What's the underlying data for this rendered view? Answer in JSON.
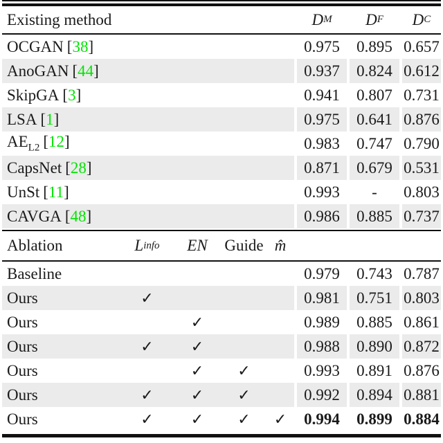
{
  "misc": {
    "bracket_open": "[",
    "bracket_close": "]",
    "dash": "-",
    "check_glyph": "✓"
  },
  "colors": {
    "citation_green": "#00e400",
    "stripe_gray": "#ebebeb",
    "rule_black": "#111111",
    "text": "#1a1a1a"
  },
  "existing": {
    "header": {
      "label": "Existing method",
      "cols": [
        {
          "base": "D",
          "sub": "M"
        },
        {
          "base": "D",
          "sub": "F"
        },
        {
          "base": "D",
          "sub": "C"
        }
      ]
    },
    "rows": [
      {
        "name": "OCGAN",
        "cite": "38",
        "dm": "0.975",
        "df": "0.895",
        "dc": "0.657"
      },
      {
        "name": "AnoGAN",
        "cite": "44",
        "dm": "0.937",
        "df": "0.824",
        "dc": "0.612"
      },
      {
        "name": "SkipGA",
        "cite": "3",
        "dm": "0.941",
        "df": "0.807",
        "dc": "0.731"
      },
      {
        "name": "LSA",
        "cite": "1",
        "dm": "0.975",
        "df": "0.641",
        "dc": "0.876"
      },
      {
        "name": "AE",
        "name_sub": "L2",
        "cite": "12",
        "dm": "0.983",
        "df": "0.747",
        "dc": "0.790"
      },
      {
        "name": "CapsNet",
        "cite": "28",
        "dm": "0.871",
        "df": "0.679",
        "dc": "0.531"
      },
      {
        "name": "UnSt",
        "cite": "11",
        "dm": "0.993",
        "df": "-",
        "dc": "0.803"
      },
      {
        "name": "CAVGA",
        "cite": "48",
        "dm": "0.986",
        "df": "0.885",
        "dc": "0.737"
      }
    ]
  },
  "ablation": {
    "header": {
      "label": "Ablation",
      "cols": [
        {
          "base": "L",
          "sub": "info"
        },
        {
          "base": "EN"
        },
        {
          "base": "Guide"
        },
        {
          "base": "m̂"
        }
      ]
    },
    "rows": [
      {
        "name": "Baseline",
        "checks": [
          "",
          "",
          "",
          ""
        ],
        "dm": "0.979",
        "df": "0.743",
        "dc": "0.787"
      },
      {
        "name": "Ours",
        "checks": [
          "✓",
          "",
          "",
          ""
        ],
        "dm": "0.981",
        "df": "0.751",
        "dc": "0.803"
      },
      {
        "name": "Ours",
        "checks": [
          "",
          "✓",
          "",
          ""
        ],
        "dm": "0.989",
        "df": "0.885",
        "dc": "0.861"
      },
      {
        "name": "Ours",
        "checks": [
          "✓",
          "✓",
          "",
          ""
        ],
        "dm": "0.988",
        "df": "0.890",
        "dc": "0.872"
      },
      {
        "name": "Ours",
        "checks": [
          "",
          "✓",
          "✓",
          ""
        ],
        "dm": "0.993",
        "df": "0.891",
        "dc": "0.876"
      },
      {
        "name": "Ours",
        "checks": [
          "✓",
          "✓",
          "✓",
          ""
        ],
        "dm": "0.992",
        "df": "0.894",
        "dc": "0.881"
      },
      {
        "name": "Ours",
        "checks": [
          "✓",
          "✓",
          "✓",
          "✓"
        ],
        "dm": "0.994",
        "df": "0.899",
        "dc": "0.884"
      }
    ]
  }
}
